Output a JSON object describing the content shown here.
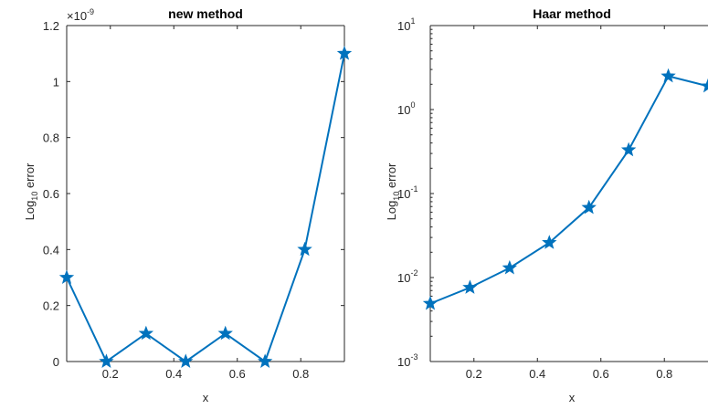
{
  "chart_data": [
    {
      "type": "line",
      "title": "new method",
      "xlabel": "x",
      "ylabel_base": "Log",
      "ylabel_sub": "10",
      "ylabel_rest": " error",
      "exponent_note": "×10",
      "exponent_power": "-9",
      "xlim": [
        0.0625,
        0.9375
      ],
      "ylim": [
        0,
        1.2
      ],
      "yscale": "linear",
      "xticks": [
        0.2,
        0.4,
        0.6,
        0.8
      ],
      "xtick_labels": [
        "0.2",
        "0.4",
        "0.6",
        "0.8"
      ],
      "yticks": [
        0,
        0.2,
        0.4,
        0.6,
        0.8,
        1,
        1.2
      ],
      "ytick_labels": [
        "0",
        "0.2",
        "0.4",
        "0.6",
        "0.8",
        "1",
        "1.2"
      ],
      "series": [
        {
          "color": "#0072BD",
          "marker": "star",
          "x": [
            0.0625,
            0.1875,
            0.3125,
            0.4375,
            0.5625,
            0.6875,
            0.8125,
            0.9375
          ],
          "y": [
            0.3,
            0.0,
            0.1,
            0.0,
            0.1,
            0.0,
            0.4,
            1.1
          ]
        }
      ]
    },
    {
      "type": "line",
      "title": "Haar method",
      "xlabel": "x",
      "ylabel_base": "Log",
      "ylabel_sub": "10",
      "ylabel_rest": " error",
      "xlim": [
        0.0625,
        0.9375
      ],
      "ylim": [
        0.001,
        10
      ],
      "yscale": "log",
      "xticks": [
        0.2,
        0.4,
        0.6,
        0.8
      ],
      "xtick_labels": [
        "0.2",
        "0.4",
        "0.6",
        "0.8"
      ],
      "yticks": [
        0.001,
        0.01,
        0.1,
        1,
        10
      ],
      "ytick_base": "10",
      "ytick_powers": [
        "-3",
        "-2",
        "-1",
        "0",
        "1"
      ],
      "series": [
        {
          "color": "#0072BD",
          "marker": "star",
          "x": [
            0.0625,
            0.1875,
            0.3125,
            0.4375,
            0.5625,
            0.6875,
            0.8125,
            0.9375
          ],
          "y": [
            0.0049,
            0.0076,
            0.013,
            0.026,
            0.068,
            0.33,
            2.5,
            1.9
          ]
        }
      ]
    }
  ]
}
